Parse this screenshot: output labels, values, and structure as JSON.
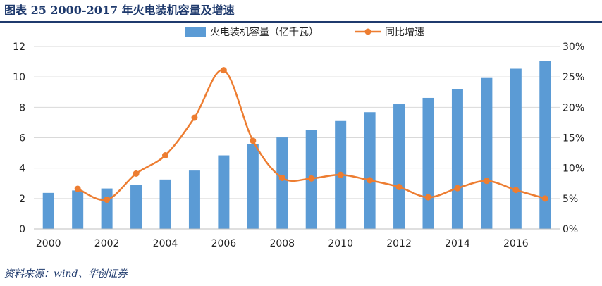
{
  "figure": {
    "title": "图表 25    2000-2017 年火电装机容量及增速",
    "source": "资料来源：wind、华创证券"
  },
  "colors": {
    "bar": "#5b9bd5",
    "line": "#ed7d31",
    "grid": "#d9d9d9",
    "axis": "#bfbfbf",
    "text": "#222222",
    "title": "#1f3a6d"
  },
  "chart_data": {
    "type": "bar",
    "title": "",
    "grid": true,
    "legend_position": "top-center",
    "x": [
      2000,
      2001,
      2002,
      2003,
      2004,
      2005,
      2006,
      2007,
      2008,
      2009,
      2010,
      2011,
      2012,
      2013,
      2014,
      2015,
      2016,
      2017
    ],
    "x_tick_labels": [
      "2000",
      "2002",
      "2004",
      "2006",
      "2008",
      "2010",
      "2012",
      "2014",
      "2016"
    ],
    "series": [
      {
        "name": "火电装机容量（亿千瓦）",
        "type": "bar",
        "axis": "left",
        "values": [
          2.37,
          2.53,
          2.66,
          2.9,
          3.25,
          3.84,
          4.84,
          5.56,
          6.02,
          6.52,
          7.1,
          7.68,
          8.2,
          8.62,
          9.2,
          9.93,
          10.54,
          11.06
        ]
      },
      {
        "name": "同比增速",
        "type": "line",
        "axis": "right",
        "smooth": true,
        "values": [
          null,
          0.066,
          0.048,
          0.091,
          0.121,
          0.183,
          0.261,
          0.145,
          0.084,
          0.083,
          0.089,
          0.08,
          0.069,
          0.052,
          0.067,
          0.079,
          0.064,
          0.05
        ]
      }
    ],
    "y_left": {
      "min": 0,
      "max": 12,
      "ticks": [
        "0",
        "2",
        "4",
        "6",
        "8",
        "10",
        "12"
      ]
    },
    "y_right": {
      "min": 0,
      "max": 0.3,
      "ticks": [
        "0%",
        "5%",
        "10%",
        "15%",
        "20%",
        "25%",
        "30%"
      ]
    }
  }
}
